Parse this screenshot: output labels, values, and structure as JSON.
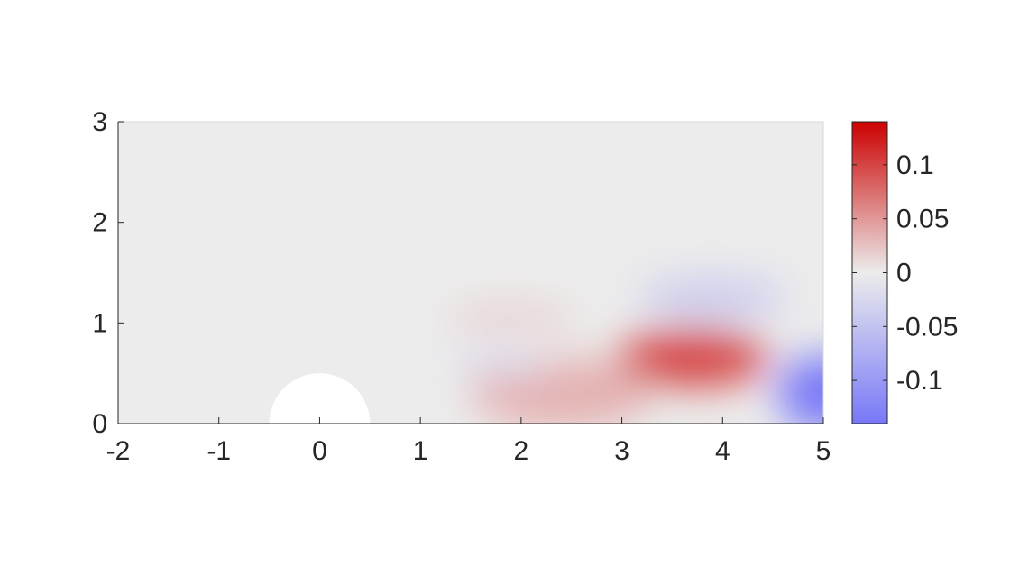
{
  "chart_data": {
    "type": "heatmap",
    "xlim": [
      -2,
      5
    ],
    "ylim": [
      0,
      3
    ],
    "x_ticks": [
      -2,
      -1,
      0,
      1,
      2,
      3,
      4,
      5
    ],
    "x_tick_labels": [
      "-2",
      "-1",
      "0",
      "1",
      "2",
      "3",
      "4",
      "5"
    ],
    "y_ticks": [
      0,
      1,
      2,
      3
    ],
    "y_tick_labels": [
      "0",
      "1",
      "2",
      "3"
    ],
    "colormap": "diverging blue-white-red",
    "colors": {
      "negative": "#7878f8",
      "zero": "#ececec",
      "positive": "#cc0000",
      "background": "#ececec"
    },
    "colorbar": {
      "range": [
        -0.14,
        0.14
      ],
      "ticks": [
        0.1,
        0.05,
        0,
        -0.05,
        -0.1
      ],
      "tick_labels": [
        "0.1",
        "0.05",
        "0",
        "-0.05",
        "-0.1"
      ],
      "position": "right"
    },
    "obstacle": {
      "shape": "half-disk",
      "center": [
        0,
        0
      ],
      "radius": 0.5,
      "fill": "#ffffff"
    },
    "field_features": [
      {
        "x": 3.7,
        "y": 0.65,
        "sx": 0.75,
        "sy": 0.28,
        "value": 0.1
      },
      {
        "x": 2.4,
        "y": 0.3,
        "sx": 0.9,
        "sy": 0.35,
        "value": 0.035
      },
      {
        "x": 1.9,
        "y": 1.05,
        "sx": 0.65,
        "sy": 0.12,
        "value": 0.02
      },
      {
        "x": 3.9,
        "y": 1.25,
        "sx": 0.75,
        "sy": 0.2,
        "value": -0.04
      },
      {
        "x": 1.8,
        "y": 0.6,
        "sx": 0.5,
        "sy": 0.14,
        "value": -0.018
      },
      {
        "x": 5.0,
        "y": 0.3,
        "sx": 0.45,
        "sy": 0.38,
        "value": -0.14
      }
    ],
    "grid": false,
    "legend": "none"
  }
}
